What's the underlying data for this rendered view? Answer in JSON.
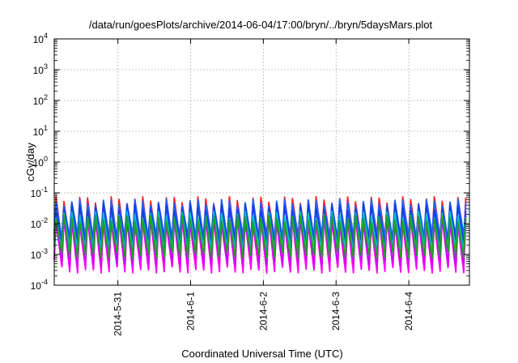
{
  "chart_data": {
    "type": "line",
    "title": "/data/run/goesPlots/archive/2014-06-04/17:00/bryn/../bryn/5daysMars.plot",
    "xlabel": "Coordinated Universal Time (UTC)",
    "ylabel": "cGy/day",
    "yscale": "log",
    "ylim": [
      0.0001,
      10000
    ],
    "xlim": [
      "2014-05-30 03:00",
      "2014-06-04 20:00"
    ],
    "grid": true,
    "x_ticks": [
      {
        "label": "2014-5-31",
        "value": "2014-05-31"
      },
      {
        "label": "2014-6-1",
        "value": "2014-06-01"
      },
      {
        "label": "2014-6-2",
        "value": "2014-06-02"
      },
      {
        "label": "2014-6-3",
        "value": "2014-06-03"
      },
      {
        "label": "2014-6-4",
        "value": "2014-06-04"
      }
    ],
    "y_ticks": [
      {
        "base": "10",
        "exp": "-4",
        "value": 0.0001
      },
      {
        "base": "10",
        "exp": "-3",
        "value": 0.001
      },
      {
        "base": "10",
        "exp": "-2",
        "value": 0.01
      },
      {
        "base": "10",
        "exp": "-1",
        "value": 0.1
      },
      {
        "base": "10",
        "exp": "0",
        "value": 1
      },
      {
        "base": "10",
        "exp": "1",
        "value": 10
      },
      {
        "base": "10",
        "exp": "2",
        "value": 100
      },
      {
        "base": "10",
        "exp": "3",
        "value": 1000
      },
      {
        "base": "10",
        "exp": "4",
        "value": 10000
      }
    ],
    "waveform": {
      "period_hours": 2.6,
      "peak_offset_hours": 0.6
    },
    "series": [
      {
        "color": "#ff00ff",
        "peak": 0.012,
        "trough": 0.0004
      },
      {
        "color": "#cc00ff",
        "peak": 0.015,
        "trough": 0.0007
      },
      {
        "color": "#ff2020",
        "peak": 0.06,
        "trough": 0.004
      },
      {
        "color": "#2060ff",
        "peak": 0.05,
        "trough": 0.005
      },
      {
        "color": "#1040e0",
        "peak": 0.035,
        "trough": 0.003
      },
      {
        "color": "#00c0c0",
        "peak": 0.02,
        "trough": 0.002
      },
      {
        "color": "#20a020",
        "peak": 0.015,
        "trough": 0.0012
      }
    ]
  }
}
